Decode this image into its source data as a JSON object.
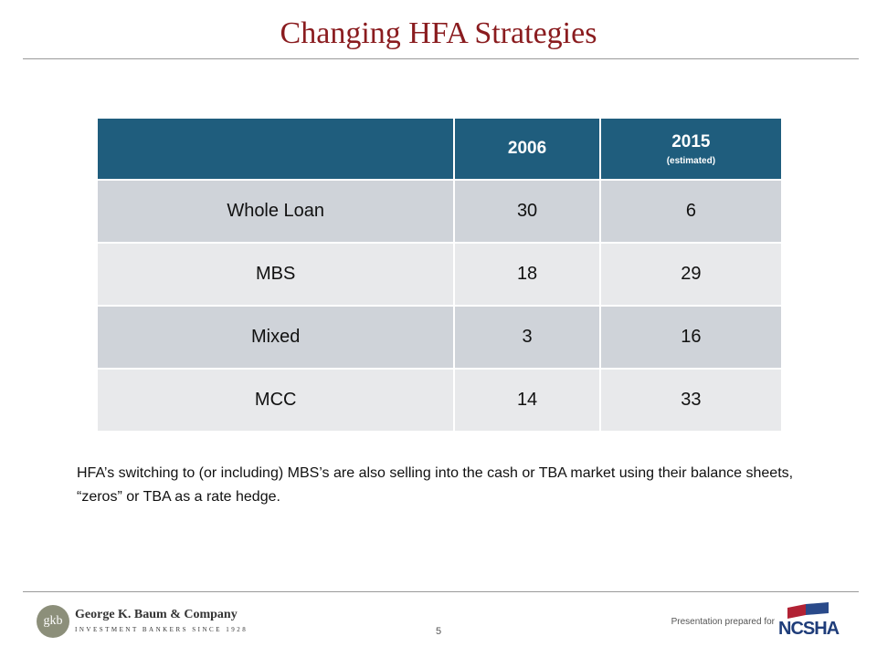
{
  "header": {
    "title": "Changing HFA Strategies"
  },
  "table": {
    "columns": [
      {
        "label": "2006"
      },
      {
        "label": "2015",
        "note": "(estimated)"
      }
    ],
    "rows": [
      {
        "label": "Whole Loan",
        "values": [
          30,
          6
        ]
      },
      {
        "label": "MBS",
        "values": [
          18,
          29
        ]
      },
      {
        "label": "Mixed",
        "values": [
          3,
          16
        ]
      },
      {
        "label": "MCC",
        "values": [
          14,
          33
        ]
      }
    ]
  },
  "note": "HFA’s switching to (or including) MBS’s are also selling into the cash or TBA market using their balance sheets, “zeros” or TBA as a rate hedge.",
  "footer": {
    "logo_mark": "gkb",
    "company": "George K. Baum & Company",
    "tagline": "INVESTMENT BANKERS SINCE 1928",
    "page": "5",
    "prepared_for": "Presentation prepared for",
    "client": "NCSHA"
  }
}
